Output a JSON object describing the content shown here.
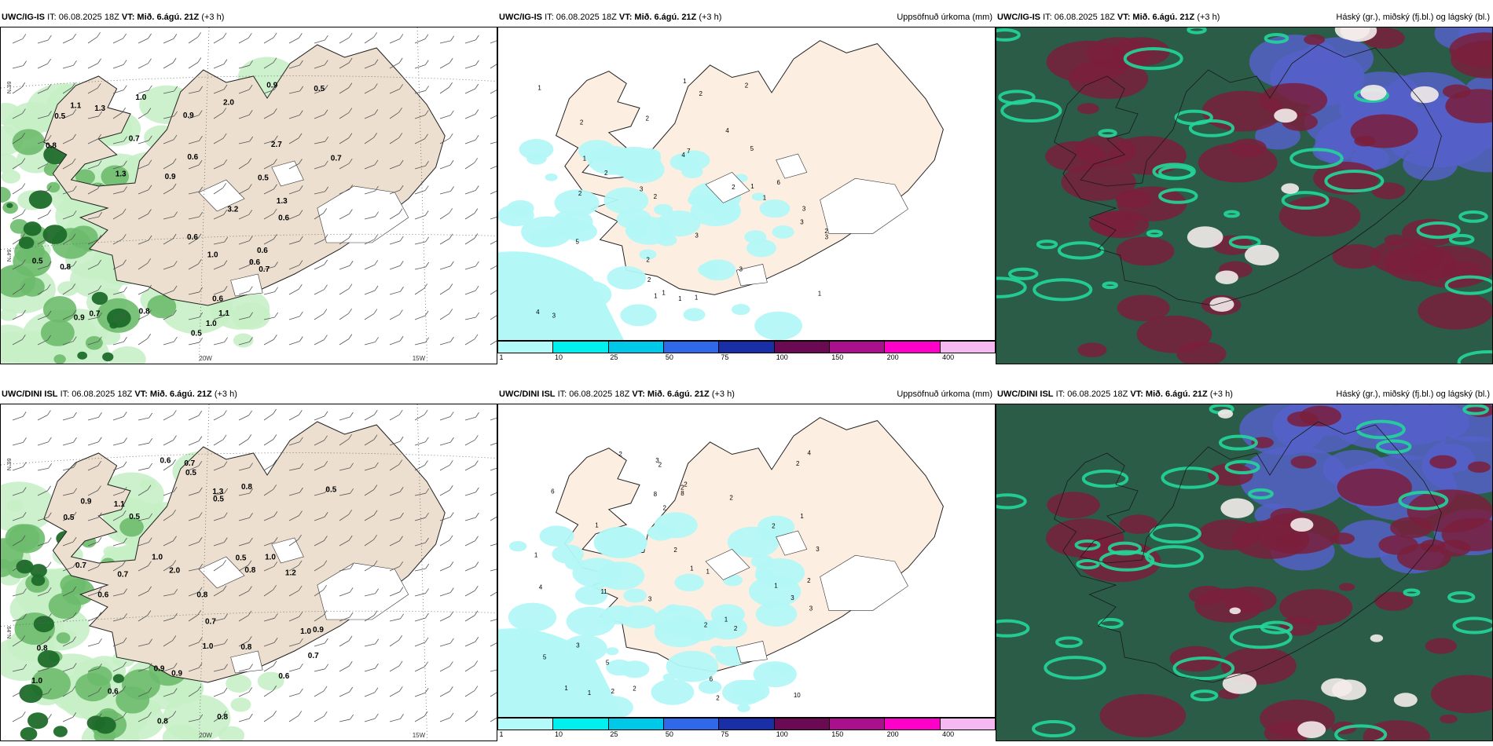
{
  "panels": [
    {
      "id": "r1c1",
      "model": "UWC/IG-IS",
      "it": "IT: 06.08.2025 18Z",
      "vt_label": "VT:",
      "vt": "Mið. 6.ágú. 21Z",
      "lead": "(+3 h)",
      "right": ""
    },
    {
      "id": "r1c2",
      "model": "UWC/IG-IS",
      "it": "IT: 06.08.2025 18Z",
      "vt_label": "VT:",
      "vt": "Mið. 6.ágú. 21Z",
      "lead": "(+3 h)",
      "right": "Uppsöfnuð úrkoma (mm)"
    },
    {
      "id": "r1c3",
      "model": "UWC/IG-IS",
      "it": "IT: 06.08.2025 18Z",
      "vt_label": "VT:",
      "vt": "Mið. 6.ágú. 21Z",
      "lead": "(+3 h)",
      "right": "Háský (gr.), miðský (fj.bl.) og lágský (bl.)"
    },
    {
      "id": "r2c1",
      "model": "UWC/DINI ISL",
      "it": "IT: 06.08.2025 18Z",
      "vt_label": "VT:",
      "vt": "Mið. 6.ágú. 21Z",
      "lead": "(+3 h)",
      "right": ""
    },
    {
      "id": "r2c2",
      "model": "UWC/DINI ISL",
      "it": "IT: 06.08.2025 18Z",
      "vt_label": "VT:",
      "vt": "Mið. 6.ágú. 21Z",
      "lead": "(+3 h)",
      "right": "Uppsöfnuð úrkoma (mm)"
    },
    {
      "id": "r2c3",
      "model": "UWC/DINI ISL",
      "it": "IT: 06.08.2025 18Z",
      "vt_label": "VT:",
      "vt": "Mið. 6.ágú. 21Z",
      "lead": "(+3 h)",
      "right": "Háský (gr.), miðský (fj.bl.) og lágský (bl.)"
    }
  ],
  "grid_labels": {
    "lon_20": "20W",
    "lon_15": "15W",
    "lat_66": "66°N",
    "lat_64": "64°N"
  },
  "precip_legend": {
    "colors": [
      "#b3fafa",
      "#00f0f0",
      "#00c8e8",
      "#2f68e8",
      "#1a2ea8",
      "#6a0a52",
      "#a8108e",
      "#ff00c8",
      "#f5b8f0"
    ],
    "ticks": [
      "1",
      "10",
      "25",
      "50",
      "75",
      "100",
      "150",
      "200",
      "400"
    ]
  },
  "palette": {
    "land": "#ecdfcf",
    "land_precip": "#fdeee2",
    "precip": "#b3f7f7",
    "gust_light": "#c6f0c6",
    "gust_mid": "#6dbb6d",
    "gust_dark": "#1e6b2a",
    "cloud_high": "#2a5c48",
    "cloud_mid": "#7a1e3c",
    "cloud_low": "#5560c8",
    "cloud_edge": "#22d69a"
  },
  "gust_values_top": [
    "0.7",
    "0.5",
    "0.9",
    "1.3",
    "0.6",
    "1.1",
    "0.5",
    "0.9",
    "1.0",
    "0.6",
    "0.8",
    "0.5",
    "0.9",
    "0.7",
    "0.6",
    "0.5",
    "0.7",
    "1.0",
    "1.1",
    "0.8",
    "0.7",
    "0.6",
    "0.6",
    "1.3",
    "0.8",
    "1.0",
    "0.6",
    "2.0",
    "1.3",
    "0.5",
    "0.9",
    "2.7",
    "3.2"
  ],
  "gust_values_bottom": [
    "0.5",
    "1.0",
    "0.6",
    "0.8",
    "1.0",
    "0.5",
    "0.7",
    "0.8",
    "0.8",
    "0.8",
    "1.3",
    "0.6",
    "0.5",
    "0.5",
    "0.9",
    "0.7",
    "1.0",
    "0.8",
    "0.5",
    "0.6",
    "0.5",
    "1.0",
    "0.8",
    "0.9",
    "0.7",
    "1.1",
    "1.0",
    "0.9",
    "0.6",
    "0.7",
    "0.7",
    "0.9",
    "1.2",
    "0.8",
    "2.0"
  ],
  "precip_values_top": [
    "1",
    "2",
    "1",
    "2",
    "3",
    "3",
    "2",
    "6",
    "3",
    "3",
    "2",
    "1",
    "1",
    "2",
    "3",
    "3",
    "5",
    "2",
    "7",
    "4",
    "1",
    "2",
    "4",
    "5",
    "3",
    "2",
    "1",
    "1",
    "2",
    "2",
    "2",
    "4",
    "1",
    "1",
    "1"
  ],
  "precip_values_bottom": [
    "2",
    "1",
    "2",
    "6",
    "2",
    "2",
    "2",
    "5",
    "2",
    "3",
    "3",
    "3",
    "2",
    "1",
    "1",
    "2",
    "3",
    "3",
    "8",
    "1",
    "1",
    "2",
    "4",
    "1",
    "2",
    "2",
    "2",
    "1",
    "6",
    "1",
    "2",
    "3",
    "11",
    "10",
    "8",
    "2",
    "2",
    "5",
    "1",
    "4"
  ]
}
